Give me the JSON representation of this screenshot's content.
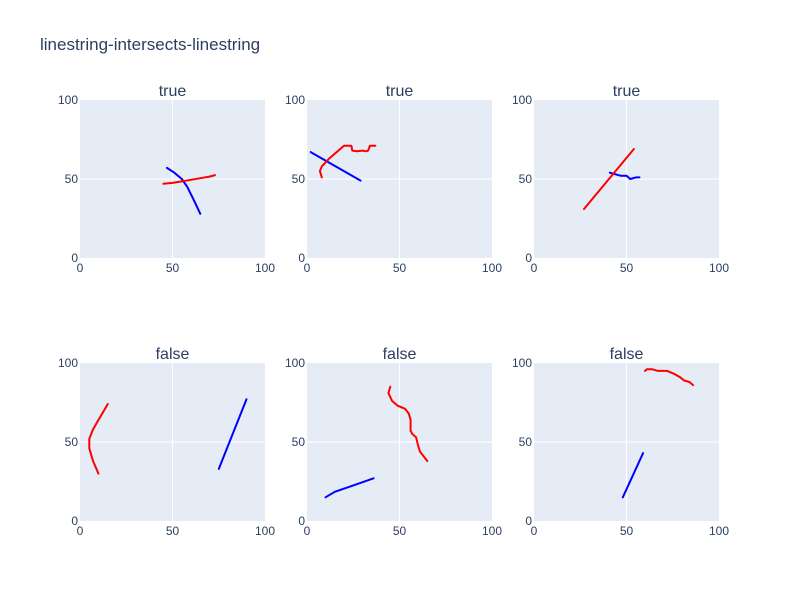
{
  "figure": {
    "title": "linestring-intersects-linestring",
    "plot_bg": "#e5ecf6",
    "grid_color": "#ffffff",
    "text_color": "#2a3f5f"
  },
  "chart_data": [
    {
      "type": "line",
      "title": "true",
      "xlim": [
        0,
        100
      ],
      "ylim": [
        0,
        100
      ],
      "x_ticks": [
        "0",
        "50",
        "100"
      ],
      "y_ticks": [
        "0",
        "50",
        "100"
      ],
      "grid": true,
      "series": [
        {
          "color": "#0000ff",
          "points": [
            [
              47,
              57
            ],
            [
              51,
              54
            ],
            [
              55,
              50
            ],
            [
              58,
              45
            ],
            [
              61,
              38
            ],
            [
              63,
              33
            ],
            [
              65,
              28
            ]
          ]
        },
        {
          "color": "#ff0000",
          "points": [
            [
              45,
              47
            ],
            [
              50,
              47.5
            ],
            [
              55,
              48.5
            ],
            [
              60,
              49.5
            ],
            [
              65,
              50.5
            ],
            [
              70,
              51.5
            ],
            [
              73,
              52.5
            ]
          ]
        }
      ]
    },
    {
      "type": "line",
      "title": "true",
      "xlim": [
        0,
        100
      ],
      "ylim": [
        0,
        100
      ],
      "x_ticks": [
        "0",
        "50",
        "100"
      ],
      "y_ticks": [
        "0",
        "50",
        "100"
      ],
      "grid": true,
      "series": [
        {
          "color": "#0000ff",
          "points": [
            [
              2,
              67
            ],
            [
              29,
              49
            ]
          ]
        },
        {
          "color": "#ff0000",
          "points": [
            [
              8,
              51
            ],
            [
              7,
              55
            ],
            [
              8,
              58
            ],
            [
              12,
              63
            ],
            [
              16,
              67
            ],
            [
              20,
              71
            ],
            [
              24,
              71
            ],
            [
              24.5,
              68
            ],
            [
              27,
              67.5
            ],
            [
              30,
              68
            ],
            [
              32,
              67.5
            ],
            [
              33,
              68
            ],
            [
              34,
              71
            ],
            [
              37,
              71
            ]
          ]
        }
      ]
    },
    {
      "type": "line",
      "title": "true",
      "xlim": [
        0,
        100
      ],
      "ylim": [
        0,
        100
      ],
      "x_ticks": [
        "0",
        "50",
        "100"
      ],
      "y_ticks": [
        "0",
        "50",
        "100"
      ],
      "grid": true,
      "series": [
        {
          "color": "#0000ff",
          "points": [
            [
              41,
              54
            ],
            [
              44,
              53
            ],
            [
              47,
              52
            ],
            [
              50,
              52
            ],
            [
              51,
              51
            ],
            [
              52,
              50
            ],
            [
              55,
              51
            ],
            [
              57,
              51
            ]
          ]
        },
        {
          "color": "#ff0000",
          "points": [
            [
              27,
              31
            ],
            [
              54,
              69
            ]
          ]
        }
      ]
    },
    {
      "type": "line",
      "title": "false",
      "xlim": [
        0,
        100
      ],
      "ylim": [
        0,
        100
      ],
      "x_ticks": [
        "0",
        "50",
        "100"
      ],
      "y_ticks": [
        "0",
        "50",
        "100"
      ],
      "grid": true,
      "series": [
        {
          "color": "#0000ff",
          "points": [
            [
              75,
              33
            ],
            [
              90,
              77
            ]
          ]
        },
        {
          "color": "#ff0000",
          "points": [
            [
              10,
              30
            ],
            [
              7,
              38
            ],
            [
              5,
              46
            ],
            [
              5,
              52
            ],
            [
              7,
              58
            ],
            [
              10,
              64
            ],
            [
              12,
              68
            ],
            [
              14,
              72
            ],
            [
              15,
              74
            ]
          ]
        }
      ]
    },
    {
      "type": "line",
      "title": "false",
      "xlim": [
        0,
        100
      ],
      "ylim": [
        0,
        100
      ],
      "x_ticks": [
        "0",
        "50",
        "100"
      ],
      "y_ticks": [
        "0",
        "50",
        "100"
      ],
      "grid": true,
      "series": [
        {
          "color": "#0000ff",
          "points": [
            [
              10,
              15
            ],
            [
              15,
              18.5
            ],
            [
              25,
              22.5
            ],
            [
              36,
              27
            ]
          ]
        },
        {
          "color": "#ff0000",
          "points": [
            [
              45,
              85
            ],
            [
              44,
              81
            ],
            [
              46,
              76
            ],
            [
              49,
              73
            ],
            [
              53,
              71
            ],
            [
              55,
              68
            ],
            [
              56,
              64
            ],
            [
              56,
              57
            ],
            [
              57,
              55
            ],
            [
              59,
              53
            ],
            [
              60,
              48
            ],
            [
              61,
              44
            ],
            [
              63,
              41
            ],
            [
              65,
              38
            ]
          ]
        }
      ]
    },
    {
      "type": "line",
      "title": "false",
      "xlim": [
        0,
        100
      ],
      "ylim": [
        0,
        100
      ],
      "x_ticks": [
        "0",
        "50",
        "100"
      ],
      "y_ticks": [
        "0",
        "50",
        "100"
      ],
      "grid": true,
      "series": [
        {
          "color": "#0000ff",
          "points": [
            [
              48,
              15
            ],
            [
              59,
              43
            ]
          ]
        },
        {
          "color": "#ff0000",
          "points": [
            [
              60,
              95
            ],
            [
              61,
              96
            ],
            [
              64,
              96
            ],
            [
              67,
              95
            ],
            [
              72,
              95
            ],
            [
              76,
              93
            ],
            [
              79,
              91
            ],
            [
              81,
              89
            ],
            [
              84,
              88
            ],
            [
              86,
              86
            ]
          ]
        }
      ]
    }
  ]
}
